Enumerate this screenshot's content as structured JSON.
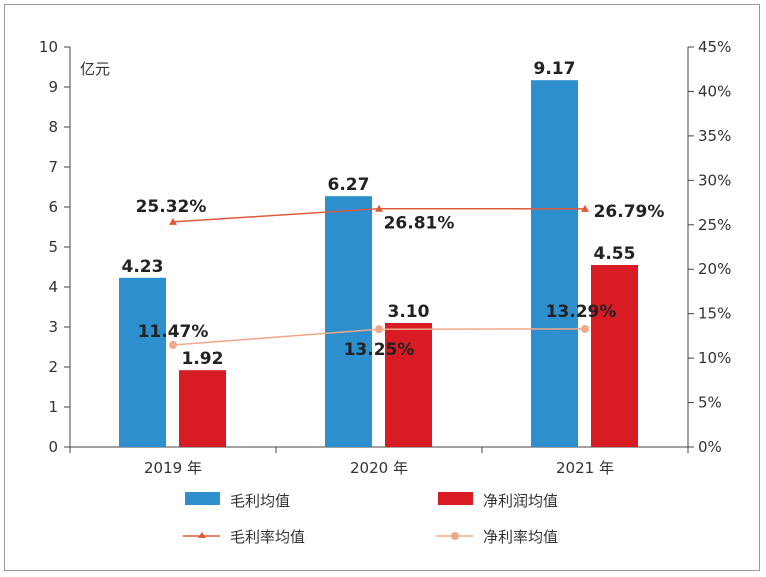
{
  "chart_data": {
    "type": "bar",
    "categories": [
      "2019 年",
      "2020 年",
      "2021 年"
    ],
    "unit_label": "亿元",
    "y_left": {
      "range": [
        0,
        10
      ],
      "ticks": [
        "0",
        "1",
        "2",
        "3",
        "4",
        "5",
        "6",
        "7",
        "8",
        "9",
        "10"
      ]
    },
    "y_right": {
      "range": [
        0,
        45
      ],
      "ticks": [
        "0%",
        "5%",
        "10%",
        "15%",
        "20%",
        "25%",
        "30%",
        "35%",
        "40%",
        "45%"
      ]
    },
    "grid": false,
    "legend_position": "bottom",
    "series": [
      {
        "name": "毛利均值",
        "type": "bar",
        "axis": "left",
        "color": "#2e8fce",
        "values": [
          4.23,
          6.27,
          9.17
        ],
        "labels": [
          "4.23",
          "6.27",
          "9.17"
        ]
      },
      {
        "name": "净利润均值",
        "type": "bar",
        "axis": "left",
        "color": "#d91c23",
        "values": [
          1.92,
          3.1,
          4.55
        ],
        "labels": [
          "1.92",
          "3.10",
          "4.55"
        ]
      },
      {
        "name": "毛利率均值",
        "type": "line",
        "marker": "triangle",
        "axis": "right",
        "color": "#e05a3a",
        "values": [
          25.32,
          26.81,
          26.79
        ],
        "labels": [
          "25.32%",
          "26.81%",
          "26.79%"
        ]
      },
      {
        "name": "净利率均值",
        "type": "line",
        "marker": "circle",
        "axis": "right",
        "color": "#f0a98a",
        "values": [
          11.47,
          13.25,
          13.29
        ],
        "labels": [
          "11.47%",
          "13.25%",
          "13.29%"
        ]
      }
    ]
  }
}
